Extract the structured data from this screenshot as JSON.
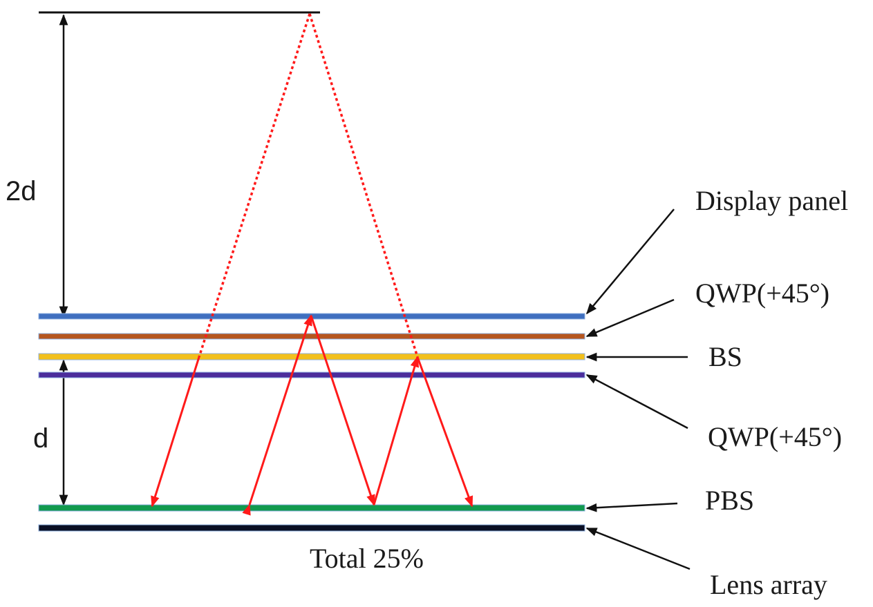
{
  "dimensions": {
    "upper": "2d",
    "lower": "d"
  },
  "layers": [
    {
      "key": "display",
      "label": "Display panel",
      "color": "#3f6fbf"
    },
    {
      "key": "qwp_top",
      "label": "QWP(+45°)",
      "color": "#b5561f"
    },
    {
      "key": "bs",
      "label": "BS",
      "color": "#f2c01c"
    },
    {
      "key": "qwp_bottom",
      "label": "QWP(+45°)",
      "color": "#4b2d9b"
    },
    {
      "key": "pbs",
      "label": "PBS",
      "color": "#119a4e"
    },
    {
      "key": "lens",
      "label": "Lens array",
      "color": "#0a0f24"
    }
  ],
  "total_label": "Total 25%",
  "colors": {
    "ray": "#ff1a1a",
    "ink": "#111111"
  }
}
